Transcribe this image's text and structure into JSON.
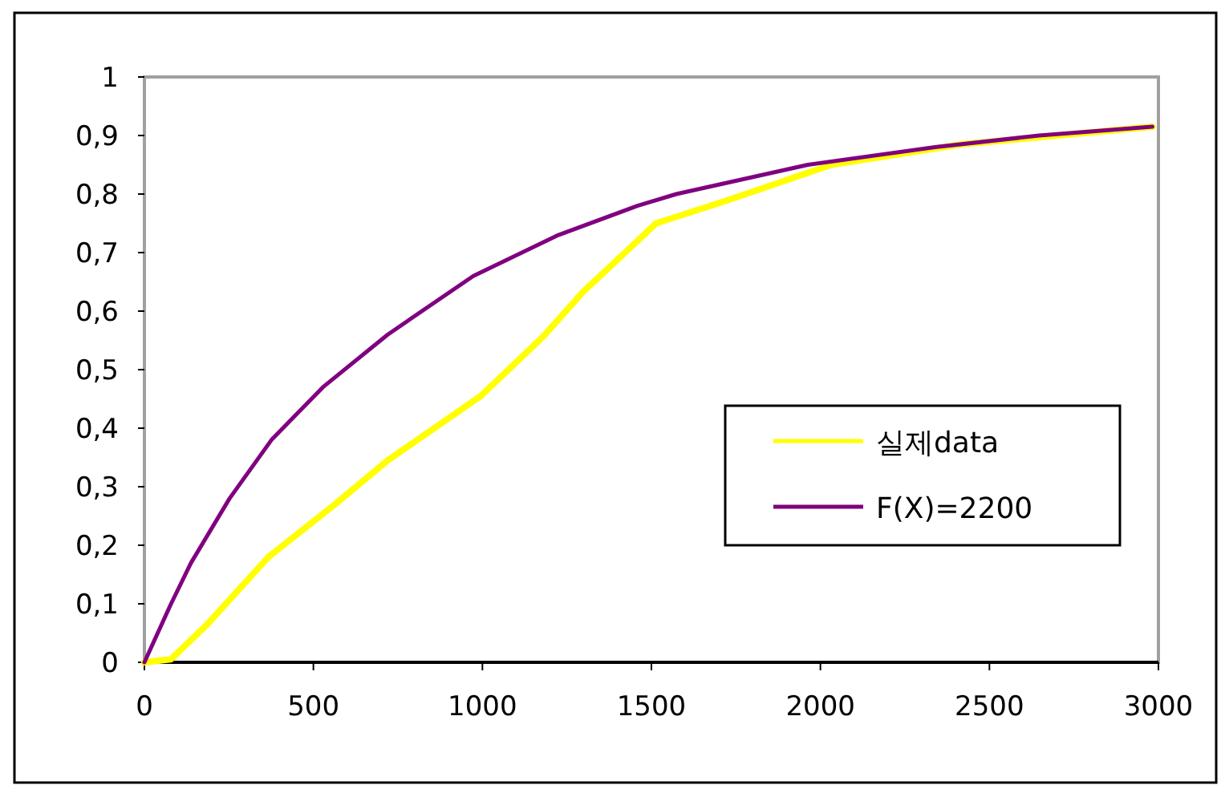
{
  "chart_data": {
    "type": "line",
    "series": [
      {
        "name": "실제data",
        "color": "#ffff00",
        "x": [
          0,
          78,
          183,
          367,
          564,
          720,
          995,
          1179,
          1298,
          1459,
          1514,
          1729,
          2032,
          2417,
          2982
        ],
        "values": [
          0,
          0.005,
          0.063,
          0.18,
          0.27,
          0.345,
          0.455,
          0.556,
          0.633,
          0.72,
          0.75,
          0.79,
          0.85,
          0.885,
          0.915
        ]
      },
      {
        "name": "F(X)=2200",
        "color": "#800080",
        "x": [
          0,
          78,
          138,
          252,
          376,
          528,
          720,
          973,
          1225,
          1459,
          1574,
          1963,
          2339,
          2647,
          2982
        ],
        "values": [
          0,
          0.099,
          0.17,
          0.28,
          0.38,
          0.47,
          0.56,
          0.66,
          0.73,
          0.78,
          0.8,
          0.85,
          0.88,
          0.9,
          0.915
        ]
      }
    ],
    "xlim": [
      0,
      3000
    ],
    "xticks": [
      0,
      500,
      1000,
      1500,
      2000,
      2500,
      3000
    ],
    "ylim": [
      0,
      1
    ],
    "yticks": [
      0,
      {
        "value": 0.1,
        "label": "0,1"
      },
      {
        "value": 0.2,
        "label": "0,2"
      },
      {
        "value": 0.3,
        "label": "0,3"
      },
      {
        "value": 0.4,
        "label": "0,4"
      },
      {
        "value": 0.5,
        "label": "0,5"
      },
      {
        "value": 0.6,
        "label": "0,6"
      },
      {
        "value": 0.7,
        "label": "0,7"
      },
      {
        "value": 0.8,
        "label": "0,8"
      },
      {
        "value": 0.9,
        "label": "0,9"
      },
      1
    ],
    "legend": "right",
    "grid": false,
    "marker": "none",
    "line_style": "solid"
  }
}
